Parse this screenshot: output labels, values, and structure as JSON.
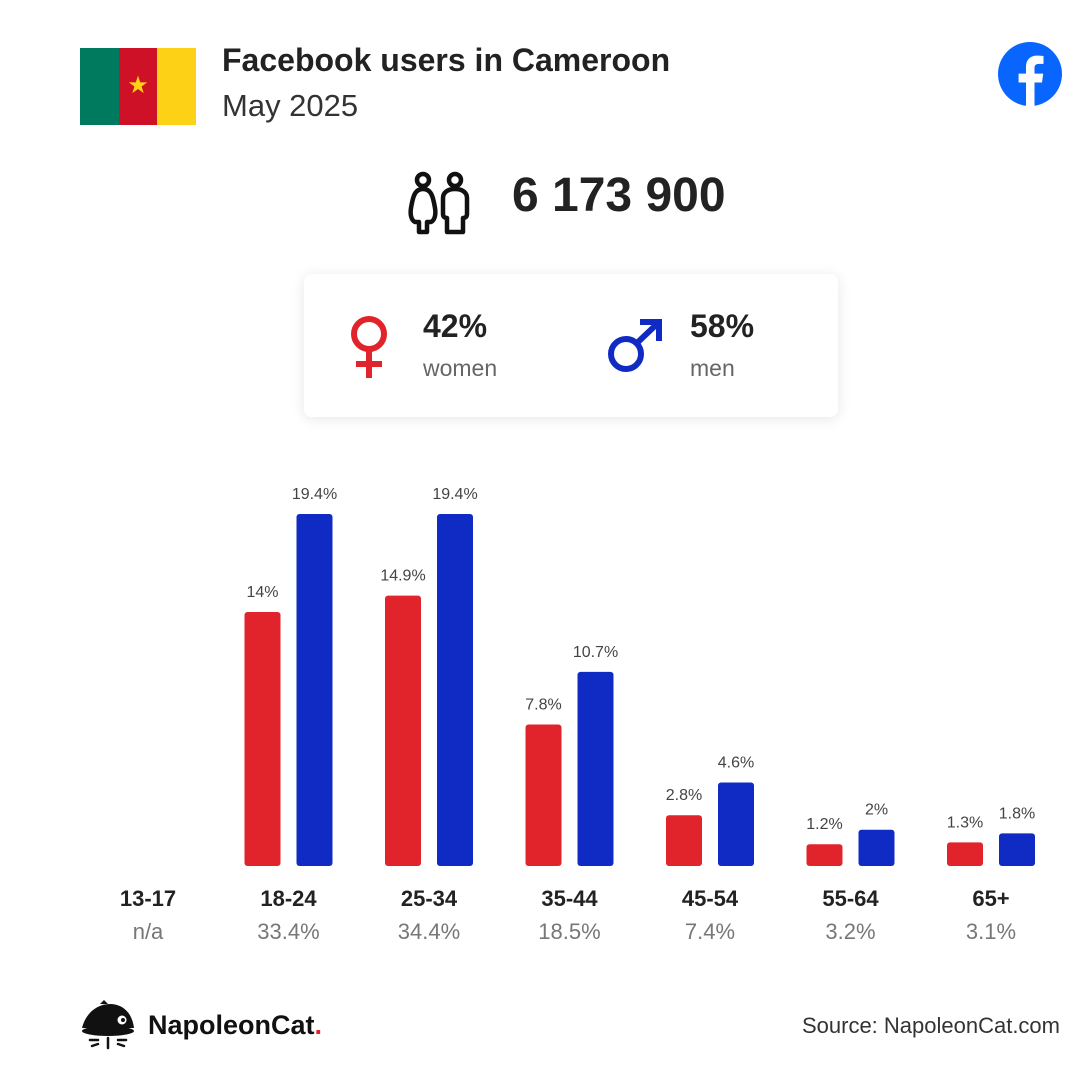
{
  "header": {
    "title": "Facebook users in Cameroon",
    "subtitle": "May 2025",
    "flag_colors": [
      "#007a5e",
      "#ce1126",
      "#fcd116"
    ],
    "flag_star": "★",
    "brand_icon": "facebook-icon"
  },
  "total": {
    "icon": "people-icon",
    "value": "6 173 900"
  },
  "gender": {
    "women": {
      "percent": "42%",
      "label": "women",
      "icon": "female-symbol-icon",
      "color": "#e1242b"
    },
    "men": {
      "percent": "58%",
      "label": "men",
      "icon": "male-symbol-icon",
      "color": "#0f2bc4"
    }
  },
  "chart_data": {
    "type": "bar",
    "categories": [
      "13-17",
      "18-24",
      "25-34",
      "35-44",
      "45-54",
      "55-64",
      "65+"
    ],
    "category_totals": [
      "n/a",
      "33.4%",
      "34.4%",
      "18.5%",
      "7.4%",
      "3.2%",
      "3.1%"
    ],
    "series": [
      {
        "name": "women",
        "color": "#e1242b",
        "values": [
          null,
          14,
          14.9,
          7.8,
          2.8,
          1.2,
          1.3
        ],
        "labels": [
          "",
          "14%",
          "14.9%",
          "7.8%",
          "2.8%",
          "1.2%",
          "1.3%"
        ]
      },
      {
        "name": "men",
        "color": "#0f2bc4",
        "values": [
          null,
          19.4,
          19.4,
          10.7,
          4.6,
          2,
          1.8
        ],
        "labels": [
          "",
          "19.4%",
          "19.4%",
          "10.7%",
          "4.6%",
          "2%",
          "1.8%"
        ]
      }
    ],
    "ylim": [
      0,
      19.4
    ],
    "grid": false,
    "legend": "none"
  },
  "footer": {
    "brand_name": "NapoleonCat",
    "brand_dot": ".",
    "brand_icon": "napoleoncat-logo-icon",
    "source": "Source: NapoleonCat.com"
  }
}
